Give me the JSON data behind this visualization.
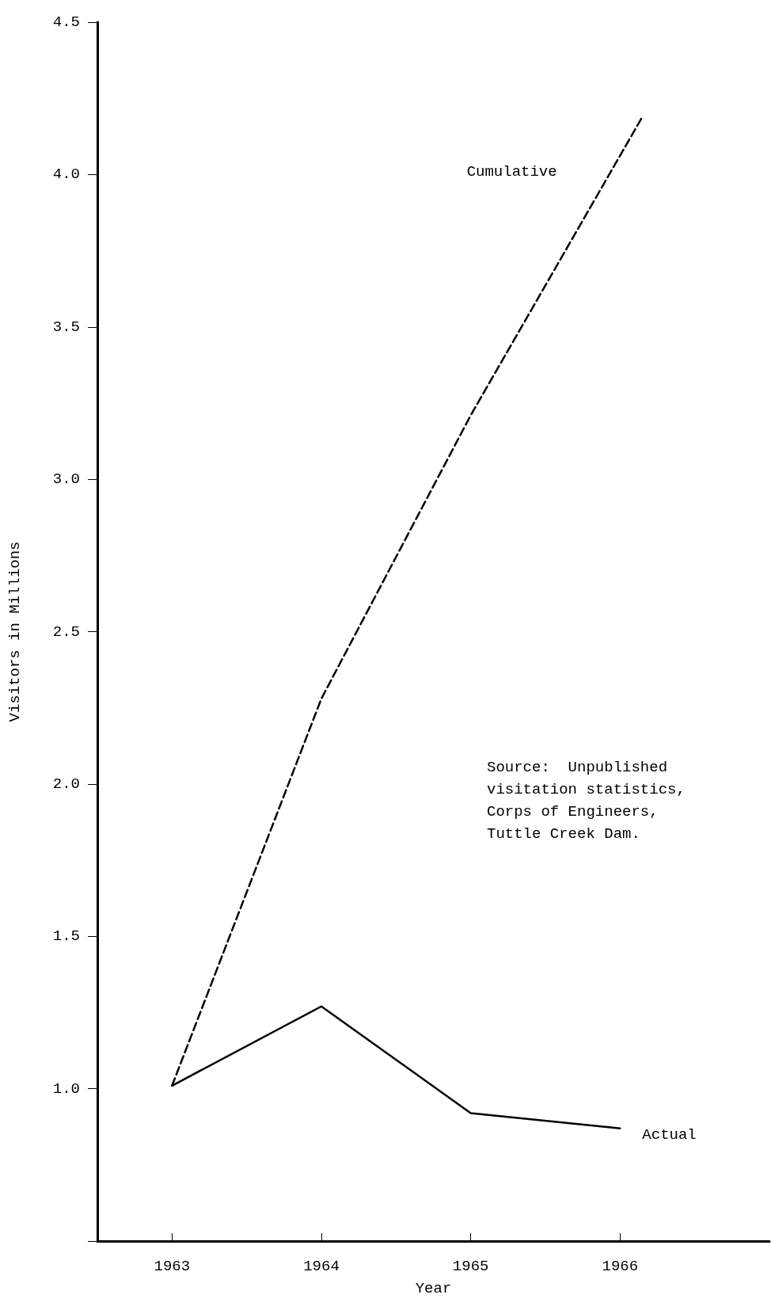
{
  "chart_data": {
    "type": "line",
    "xlabel": "Year",
    "ylabel": "Visitors in Millions",
    "xlim": [
      1962.5,
      1967
    ],
    "xticks": [
      1963,
      1964,
      1965,
      1966
    ],
    "ylim": [
      0.5,
      4.5
    ],
    "yticks": [
      {
        "value": 0.5,
        "label": null
      },
      "1.0",
      1.5,
      "2.0",
      2.5,
      "3.0",
      3.5,
      "4.0",
      4.5
    ],
    "series": [
      {
        "name": "Cumulative",
        "color": "#000000",
        "line_style": "dashed",
        "x": [
          1963,
          1964,
          1965,
          1966.15
        ],
        "values": [
          1.01,
          2.28,
          3.21,
          4.19
        ]
      },
      {
        "name": "Actual",
        "color": "#000000",
        "line_style": "solid",
        "x": [
          1963,
          1964,
          1965,
          1966
        ],
        "values": [
          1.01,
          1.27,
          0.92,
          0.87
        ]
      }
    ],
    "annotations": [
      "Source:  Unpublished\nvisitation statistics,\nCorps of Engineers,\nTuttle Creek Dam."
    ],
    "grid": false,
    "legend": false,
    "marker": "none"
  }
}
